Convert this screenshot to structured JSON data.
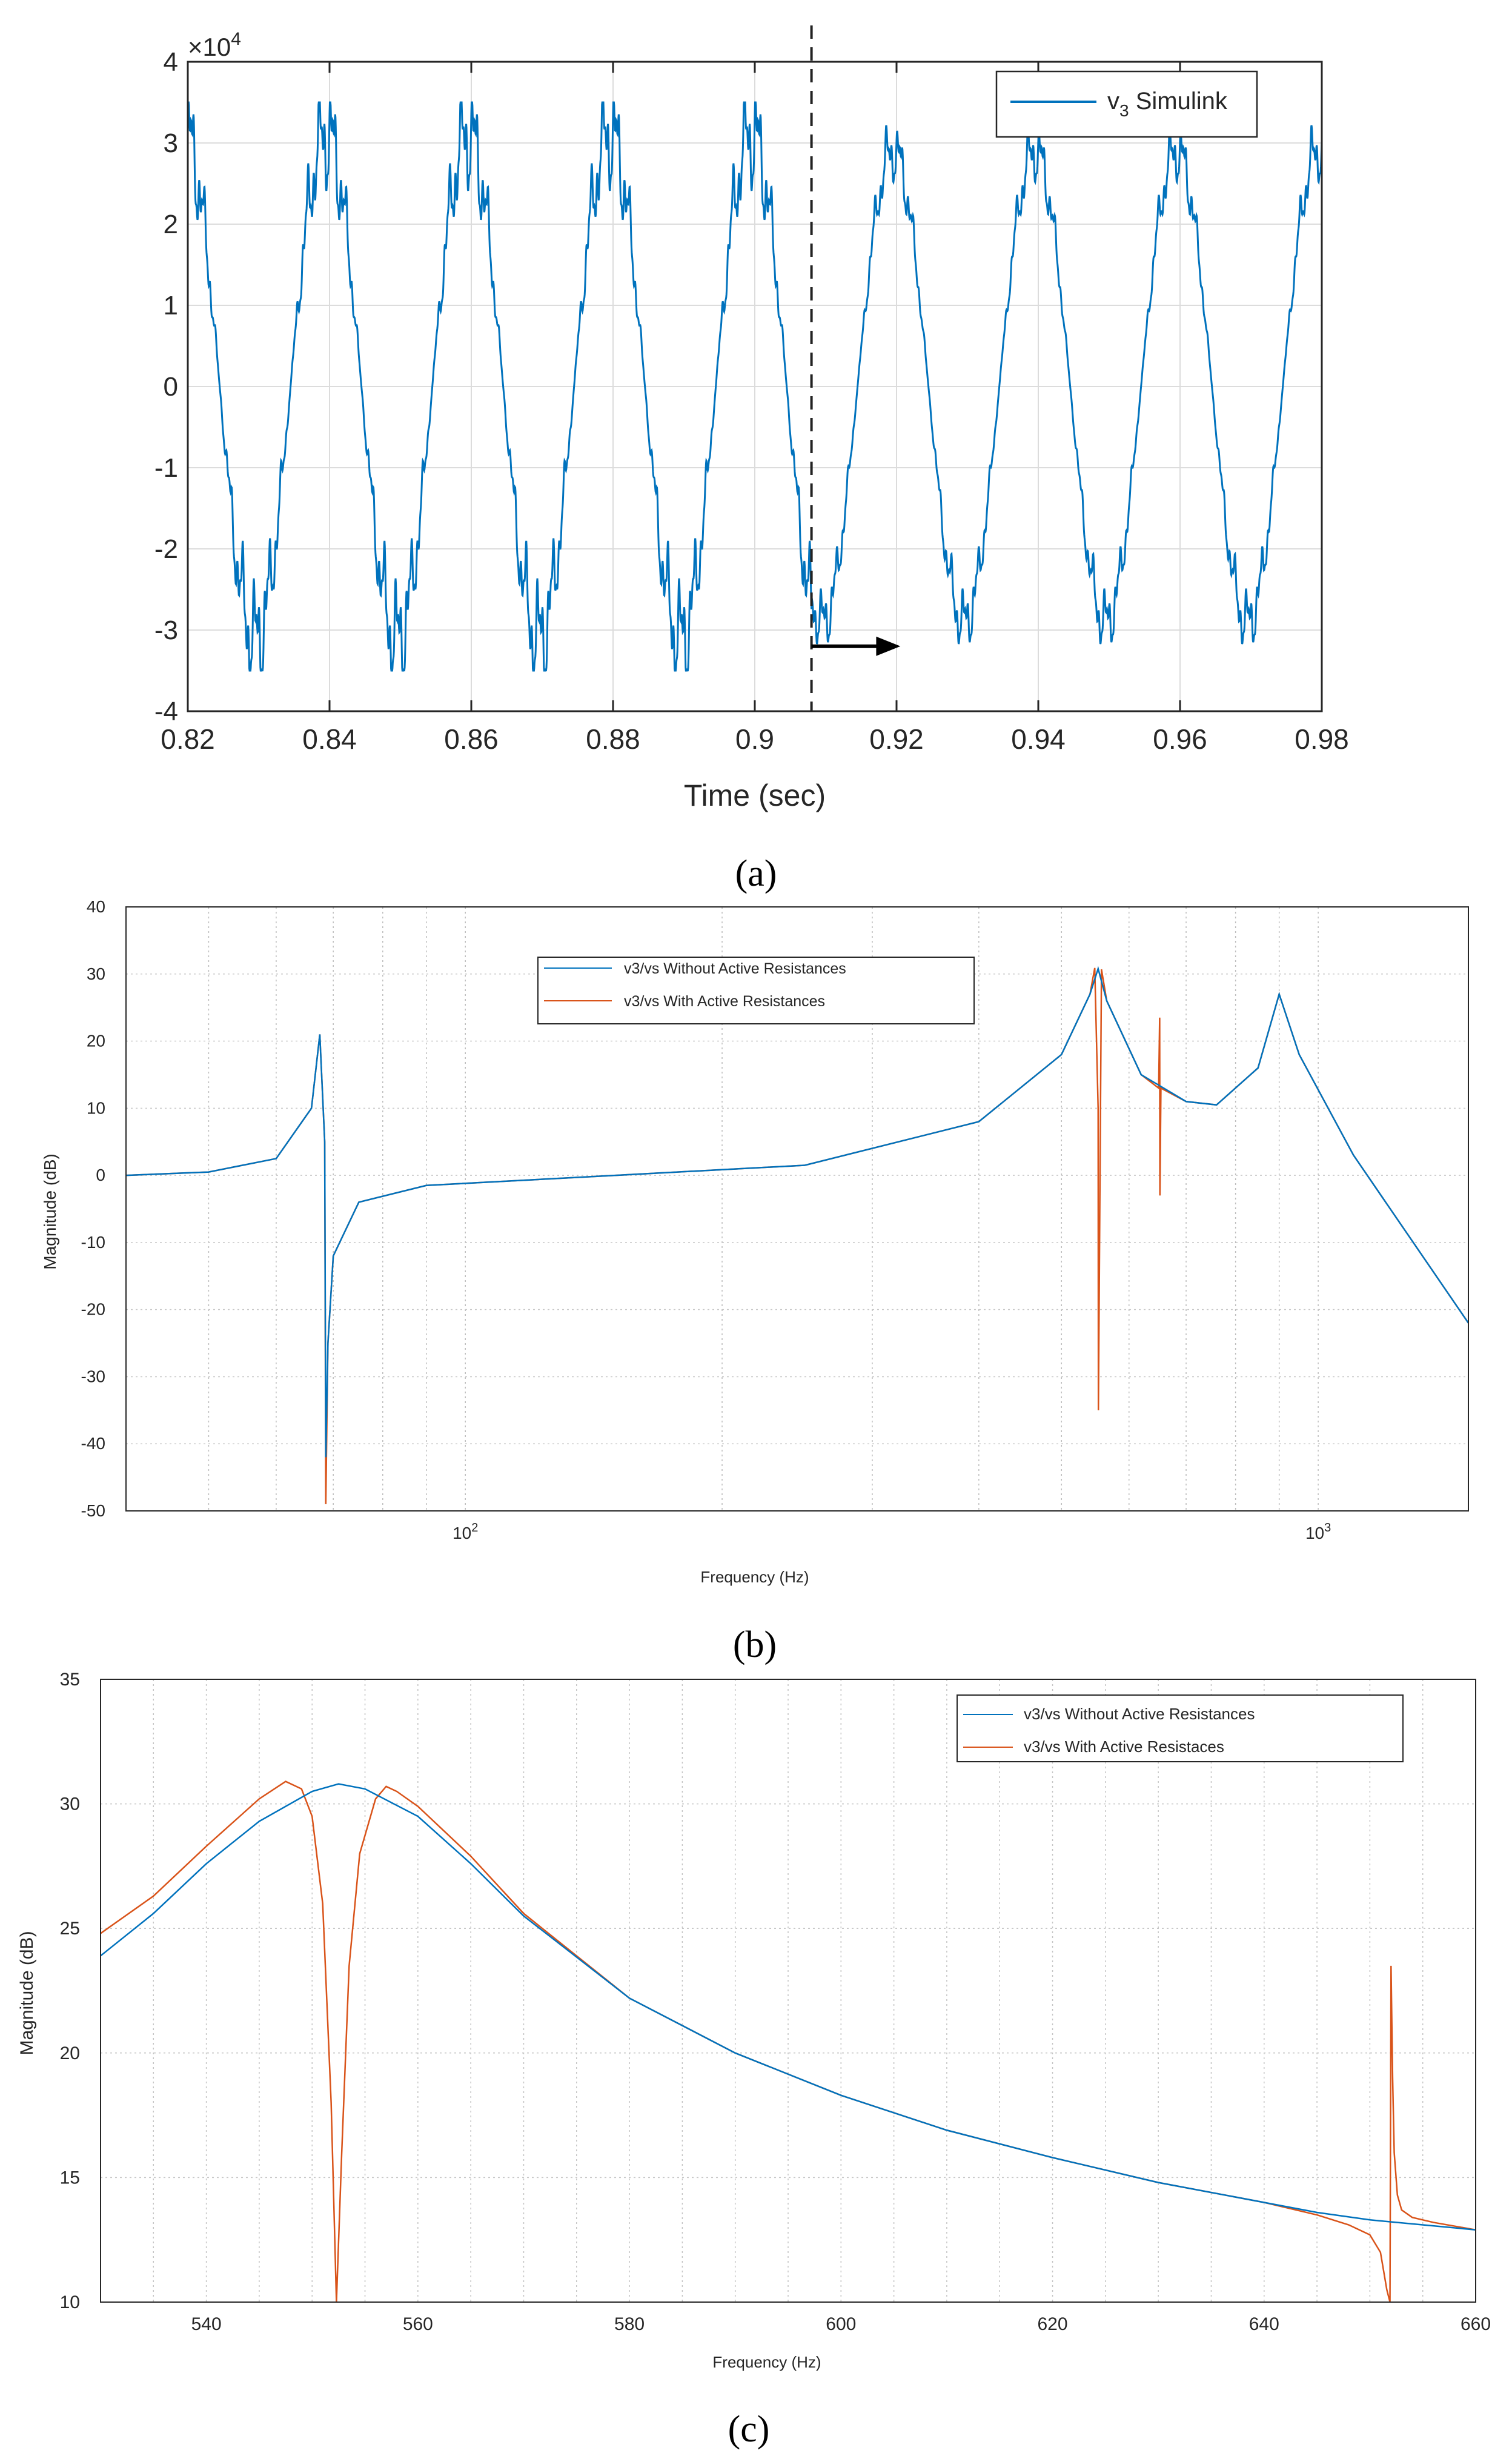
{
  "chart_data": [
    {
      "panel": "a",
      "type": "line",
      "caption": "(a)",
      "title": "",
      "xlabel": "Time (sec)",
      "ylabel": "",
      "y_multiplier_label": "×10",
      "y_multiplier_exp": "4",
      "xlim": [
        0.82,
        0.98
      ],
      "ylim": [
        -4,
        4
      ],
      "xticks": [
        "0.82",
        "0.84",
        "0.86",
        "0.88",
        "0.9",
        "0.92",
        "0.94",
        "0.96",
        "0.98"
      ],
      "yticks": [
        "-4",
        "-3",
        "-2",
        "-1",
        "0",
        "1",
        "2",
        "3",
        "4"
      ],
      "grid": true,
      "legend_position": "top-right",
      "series": [
        {
          "name": "v",
          "name_subscript": "3",
          "name_suffix": " Simulink",
          "color": "#0072BD",
          "segments": [
            {
              "t_start": 0.82,
              "t_end": 0.908,
              "fundamental_hz": 50,
              "peak_e4": 3.1,
              "harmonic_ripple": 0.45
            },
            {
              "t_start": 0.908,
              "t_end": 0.98,
              "fundamental_hz": 50,
              "peak_e4": 2.9,
              "harmonic_ripple": 0.25
            }
          ]
        }
      ],
      "annotations": [
        {
          "type": "vertical_dashed_line",
          "x": 0.908
        },
        {
          "type": "arrow",
          "direction": "right",
          "x_from": 0.908,
          "x_to": 0.912,
          "y": -3.2
        }
      ]
    },
    {
      "panel": "b",
      "type": "line",
      "caption": "(b)",
      "xlabel": "Frequency  (Hz)",
      "ylabel": "Magnitude (dB)",
      "xscale": "log",
      "xlim": [
        40,
        1500
      ],
      "ylim": [
        -50,
        40
      ],
      "yticks": [
        "-50",
        "-40",
        "-30",
        "-20",
        "-10",
        "0",
        "10",
        "20",
        "30",
        "40"
      ],
      "xtick_labels": [
        {
          "value": 100,
          "base": "10",
          "exp": "2"
        },
        {
          "value": 1000,
          "base": "10",
          "exp": "3"
        }
      ],
      "grid": true,
      "legend_position": "top-center",
      "series": [
        {
          "name": "v3/vs Without Active Resistances",
          "color": "#0072BD",
          "x": [
            40,
            50,
            60,
            66,
            67.5,
            68.4,
            68.6,
            69,
            70,
            75,
            90,
            150,
            250,
            400,
            500,
            540,
            552,
            565,
            620,
            700,
            760,
            850,
            900,
            950,
            1100,
            1500
          ],
          "y": [
            0,
            0.5,
            2.5,
            10,
            21,
            5,
            -42,
            -25,
            -12,
            -4,
            -1.5,
            0,
            1.5,
            8,
            18,
            27,
            30.8,
            26,
            15,
            11,
            10.5,
            16,
            27,
            18,
            3,
            -22
          ]
        },
        {
          "name": "v3/vs With Active Resistances",
          "color": "#D95319",
          "x": [
            40,
            50,
            60,
            66,
            67.5,
            68.4,
            68.6,
            69,
            70,
            75,
            90,
            150,
            250,
            400,
            500,
            540,
            547,
            552,
            552.4,
            557,
            565,
            620,
            650,
            651.8,
            652.2,
            654,
            700,
            760,
            850,
            900,
            950,
            1100,
            1500
          ],
          "y": [
            0,
            0.5,
            2.5,
            10,
            21,
            5,
            -49,
            -25,
            -12,
            -4,
            -1.5,
            0,
            1.5,
            8,
            18,
            27,
            30.9,
            10,
            -35,
            30.7,
            26,
            15,
            13,
            23.5,
            -3,
            13,
            11,
            10.5,
            16,
            27,
            18,
            3,
            -22
          ]
        }
      ]
    },
    {
      "panel": "c",
      "type": "line",
      "caption": "(c)",
      "xlabel": "Frequency  (Hz)",
      "ylabel": "Magnitude (dB)",
      "xlim": [
        530,
        660
      ],
      "ylim": [
        10,
        35
      ],
      "xticks": [
        "540",
        "560",
        "580",
        "600",
        "620",
        "640",
        "660"
      ],
      "yticks": [
        "10",
        "15",
        "20",
        "25",
        "30",
        "35"
      ],
      "grid": true,
      "legend_position": "top-right",
      "series": [
        {
          "name": "v3/vs Without Active Resistances",
          "color": "#0072BD",
          "x": [
            530,
            535,
            540,
            545,
            550,
            552.5,
            555,
            560,
            565,
            570,
            580,
            590,
            600,
            610,
            620,
            630,
            640,
            645,
            650,
            655,
            660
          ],
          "y": [
            23.9,
            25.6,
            27.6,
            29.3,
            30.5,
            30.8,
            30.6,
            29.5,
            27.6,
            25.5,
            22.2,
            20.0,
            18.3,
            16.9,
            15.8,
            14.8,
            14.0,
            13.6,
            13.3,
            13.1,
            12.9
          ]
        },
        {
          "name": "v3/vs With Active Resistaces",
          "color": "#D95319",
          "x": [
            530,
            535,
            540,
            545,
            547.5,
            549,
            550,
            551,
            551.8,
            552.3,
            552.8,
            553.5,
            554.5,
            556,
            557,
            558,
            560,
            565,
            570,
            580,
            590,
            600,
            610,
            620,
            630,
            640,
            645,
            648,
            650,
            651,
            651.6,
            651.9,
            652.0,
            652.15,
            652.3,
            652.6,
            653,
            654,
            656,
            660
          ],
          "y": [
            24.8,
            26.3,
            28.3,
            30.2,
            30.9,
            30.6,
            29.5,
            26.0,
            18.0,
            10.0,
            16.0,
            23.5,
            28.0,
            30.2,
            30.7,
            30.5,
            29.9,
            27.9,
            25.6,
            22.2,
            20.0,
            18.3,
            16.9,
            15.8,
            14.8,
            14.0,
            13.5,
            13.1,
            12.7,
            12.0,
            10.5,
            10.0,
            23.5,
            19.0,
            16.0,
            14.3,
            13.7,
            13.4,
            13.2,
            12.9
          ]
        }
      ]
    }
  ]
}
